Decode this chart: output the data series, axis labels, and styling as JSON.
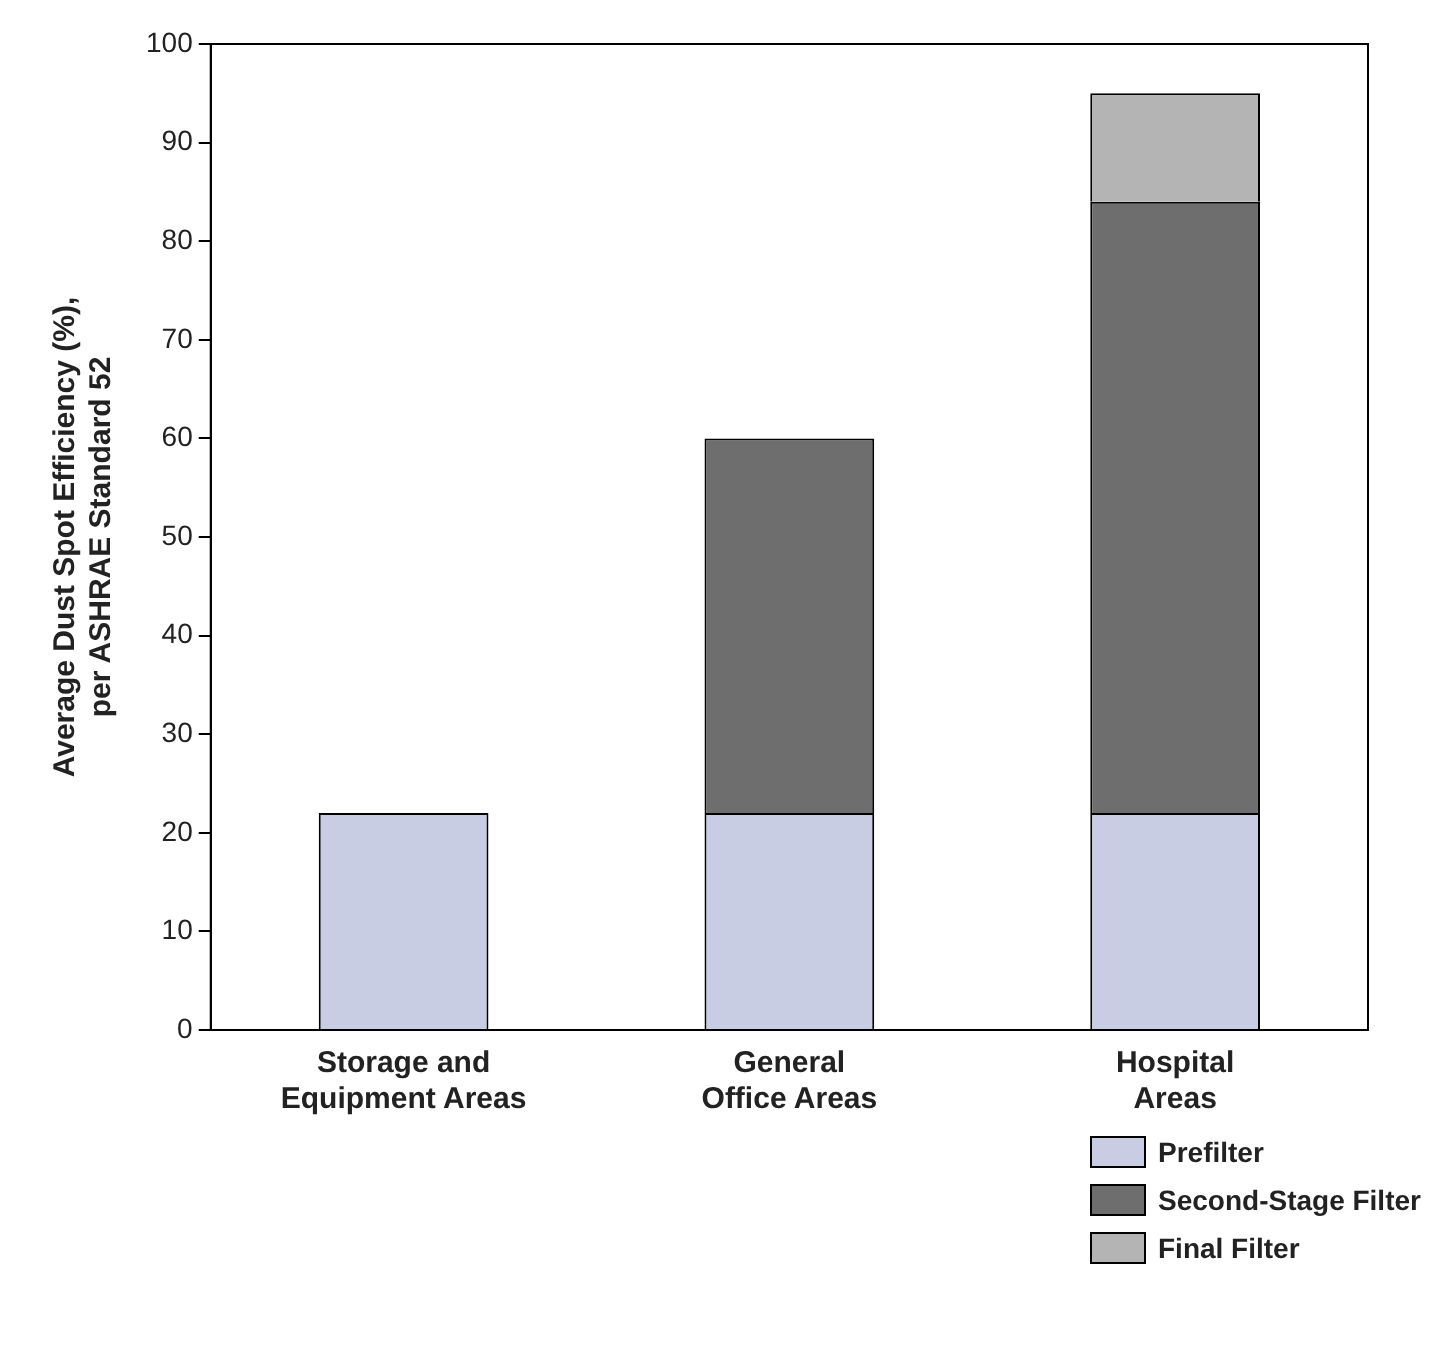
{
  "chart_data": {
    "type": "bar",
    "stacked": true,
    "ylabel": "Average Dust Spot Efficiency (%),\nper ASHRAE Standard 52",
    "categories": [
      "Storage and\nEquipment Areas",
      "General\nOffice Areas",
      "Hospital\nAreas"
    ],
    "series": [
      {
        "name": "Prefilter",
        "color": "#c9cde3",
        "values": [
          22,
          22,
          22
        ]
      },
      {
        "name": "Second-Stage Filter",
        "color": "#6e6e6e",
        "values": [
          0,
          38,
          62
        ]
      },
      {
        "name": "Final Filter",
        "color": "#b4b4b4",
        "values": [
          0,
          0,
          11
        ]
      }
    ],
    "ylim": [
      0,
      100
    ],
    "yticks": [
      0,
      10,
      20,
      30,
      40,
      50,
      60,
      70,
      80,
      90,
      100
    ],
    "grid": false,
    "legend": "bottom right"
  }
}
